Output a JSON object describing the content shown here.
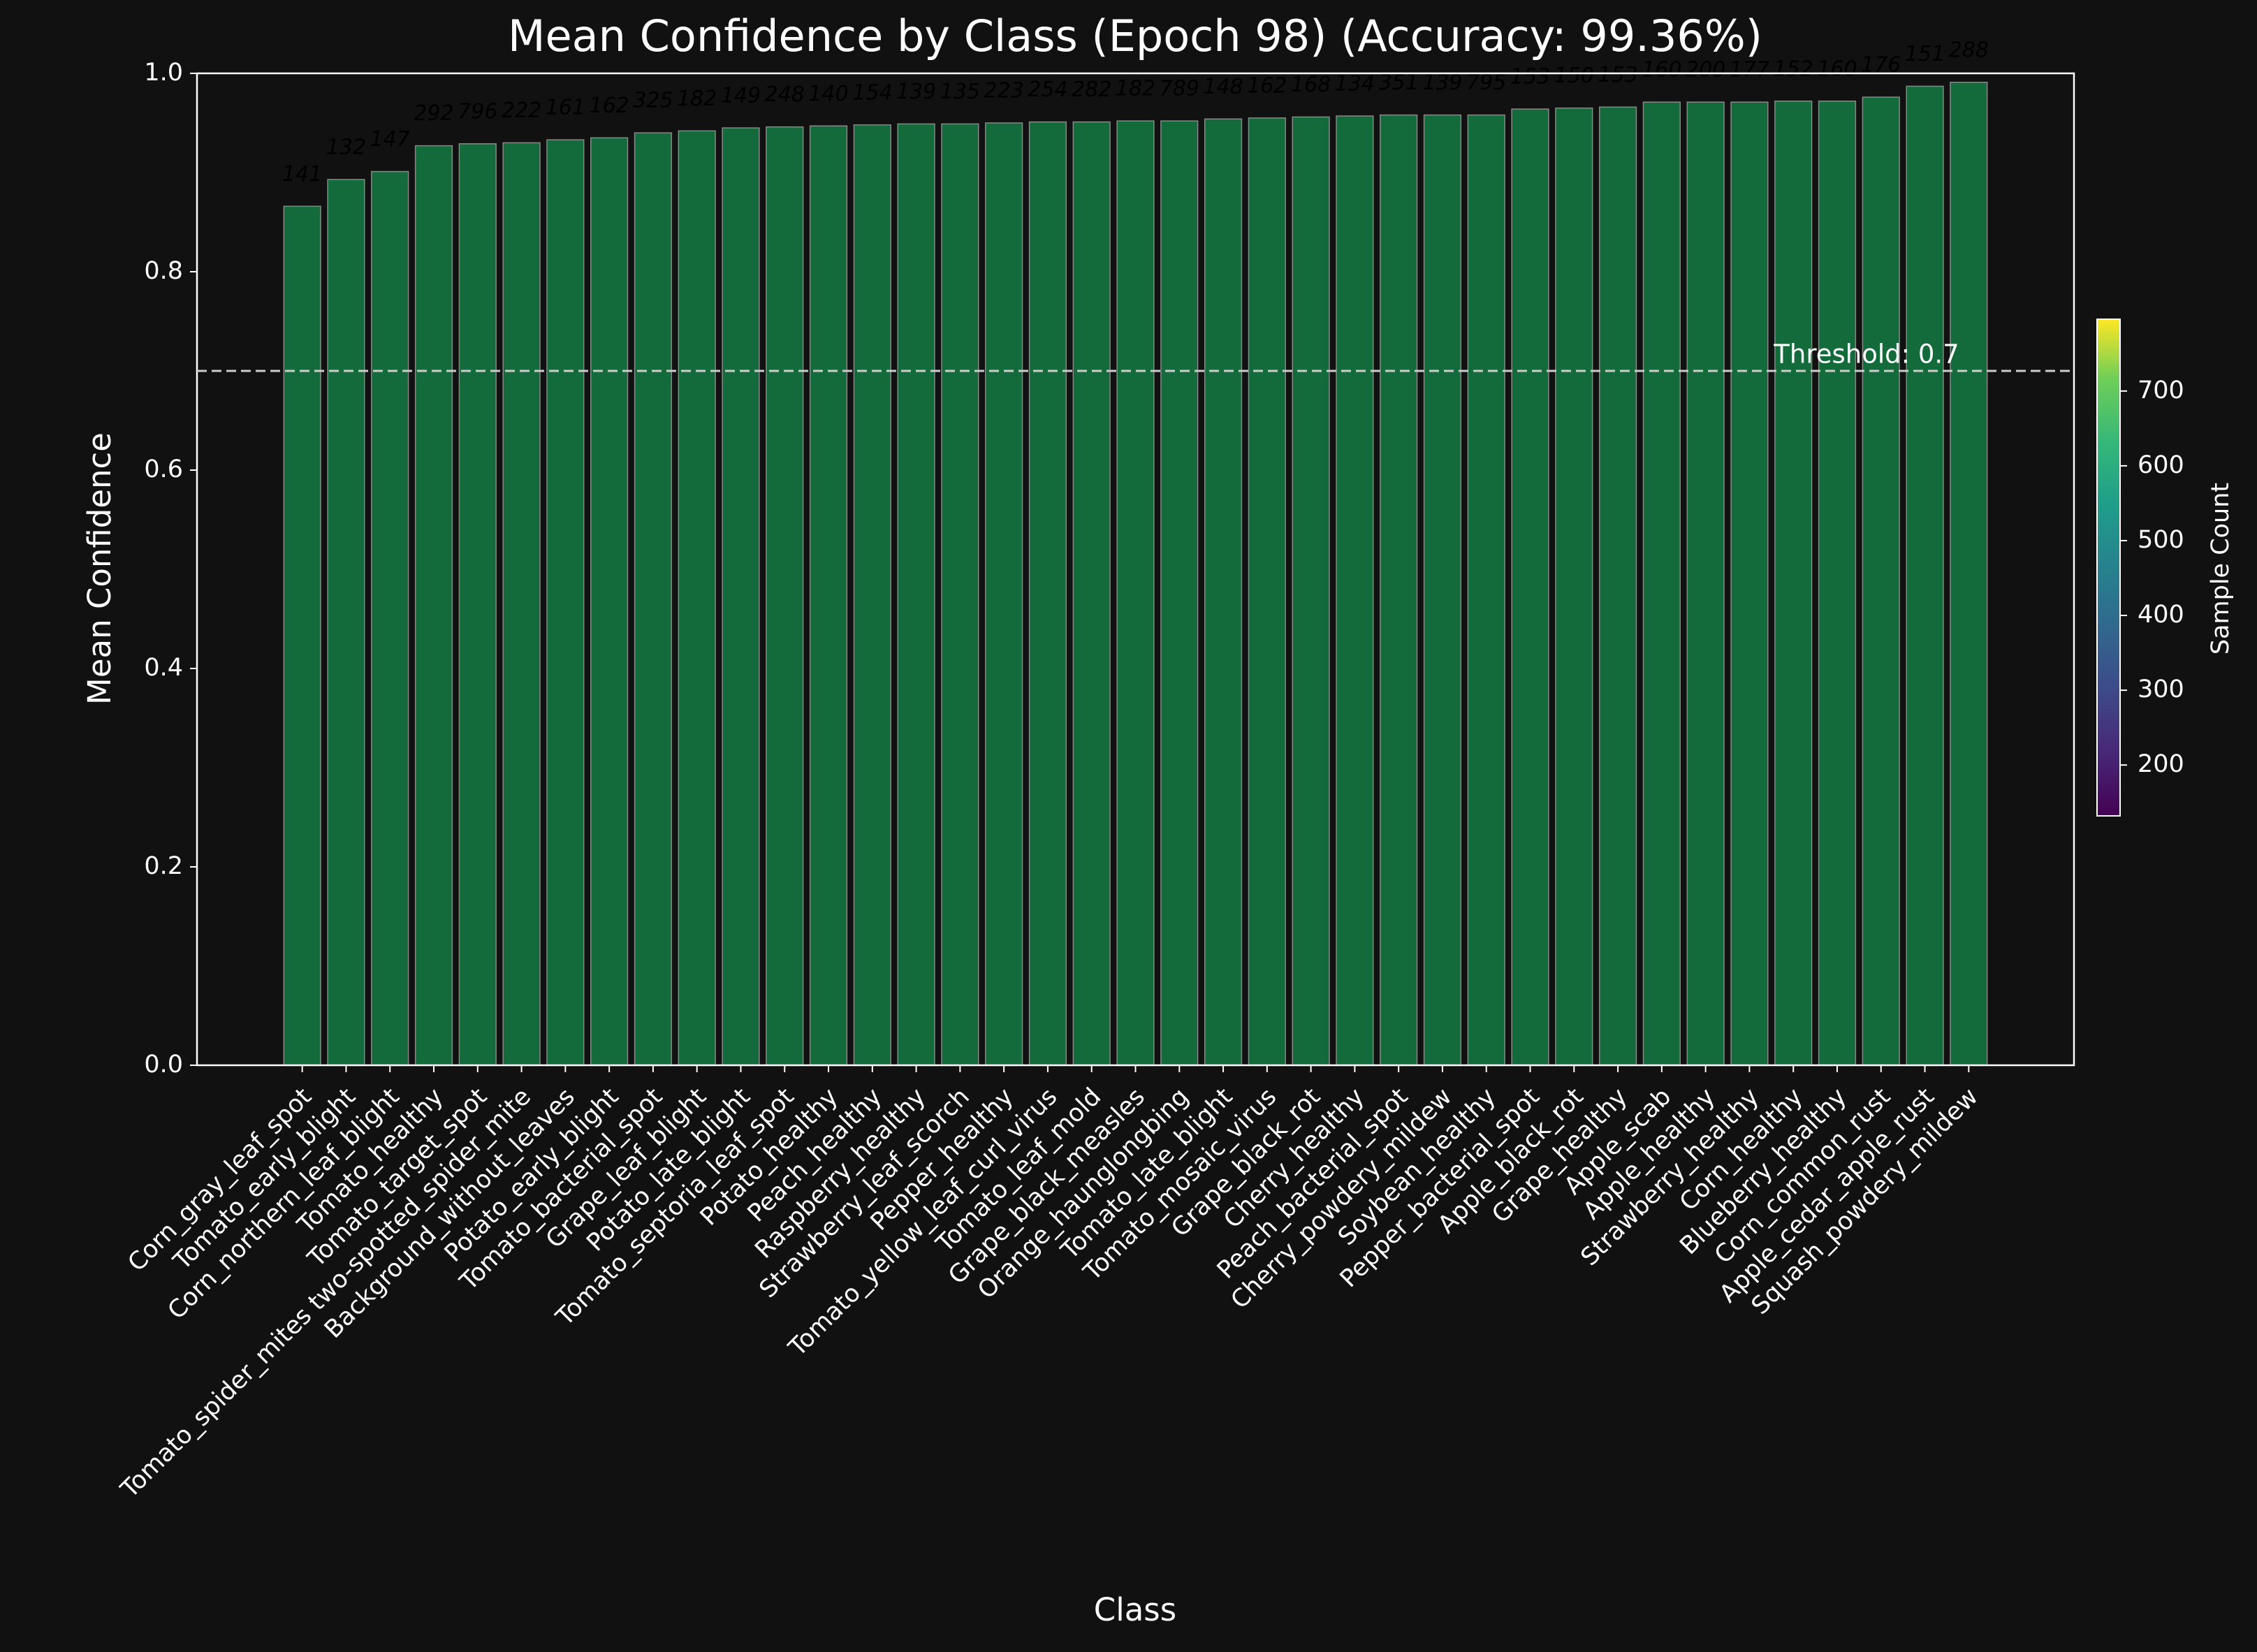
{
  "chart_data": {
    "type": "bar",
    "title": "Mean Confidence by Class (Epoch 98) (Accuracy: 99.36%)",
    "x_label": "Class",
    "y_label": "Mean Confidence",
    "categories": [
      "Corn_gray_leaf_spot",
      "Tomato_early_blight",
      "Corn_northern_leaf_blight",
      "Tomato_healthy",
      "Tomato_target_spot",
      "Tomato_spider_mites two-spotted_spider_mite",
      "Background_without_leaves",
      "Potato_early_blight",
      "Tomato_bacterial_spot",
      "Grape_leaf_blight",
      "Potato_late_blight",
      "Tomato_septoria_leaf_spot",
      "Potato_healthy",
      "Peach_healthy",
      "Raspberry_healthy",
      "Strawberry_leaf_scorch",
      "Pepper_healthy",
      "Tomato_yellow_leaf_curl_virus",
      "Tomato_leaf_mold",
      "Grape_black_measles",
      "Orange_haunglongbing",
      "Tomato_late_blight",
      "Tomato_mosaic_virus",
      "Grape_black_rot",
      "Cherry_healthy",
      "Peach_bacterial_spot",
      "Cherry_powdery_mildew",
      "Soybean_healthy",
      "Pepper_bacterial_spot",
      "Apple_black_rot",
      "Grape_healthy",
      "Apple_scab",
      "Apple_healthy",
      "Strawberry_healthy",
      "Corn_healthy",
      "Blueberry_healthy",
      "Corn_common_rust",
      "Apple_cedar_apple_rust",
      "Squash_powdery_mildew"
    ],
    "values": [
      0.866,
      0.893,
      0.901,
      0.927,
      0.929,
      0.93,
      0.933,
      0.935,
      0.94,
      0.942,
      0.945,
      0.946,
      0.947,
      0.948,
      0.949,
      0.949,
      0.95,
      0.951,
      0.951,
      0.952,
      0.952,
      0.954,
      0.955,
      0.956,
      0.957,
      0.958,
      0.958,
      0.958,
      0.964,
      0.965,
      0.966,
      0.971,
      0.971,
      0.971,
      0.972,
      0.972,
      0.976,
      0.987,
      0.991
    ],
    "sample_counts": [
      141,
      132,
      147,
      292,
      796,
      222,
      161,
      162,
      325,
      182,
      149,
      248,
      140,
      154,
      139,
      135,
      223,
      254,
      282,
      182,
      789,
      148,
      162,
      168,
      134,
      351,
      139,
      795,
      153,
      150,
      153,
      160,
      200,
      177,
      152,
      160,
      176,
      151,
      288
    ],
    "color": "#136b3b",
    "ylim": [
      0,
      1.0
    ],
    "yticks": [
      {
        "value": 0,
        "label": "0.0"
      },
      {
        "value": 0.2,
        "label": "0.2"
      },
      {
        "value": 0.4,
        "label": "0.4"
      },
      {
        "value": 0.6,
        "label": "0.6"
      },
      {
        "value": 0.8,
        "label": "0.8"
      },
      {
        "value": 1.0,
        "label": "1.0"
      }
    ],
    "threshold": 0.7,
    "threshold_label": "Threshold: 0.7",
    "colorbar_label": "Sample Count",
    "clim": [
      132,
      796
    ],
    "cticks": [
      200,
      300,
      400,
      500,
      600,
      700
    ]
  }
}
